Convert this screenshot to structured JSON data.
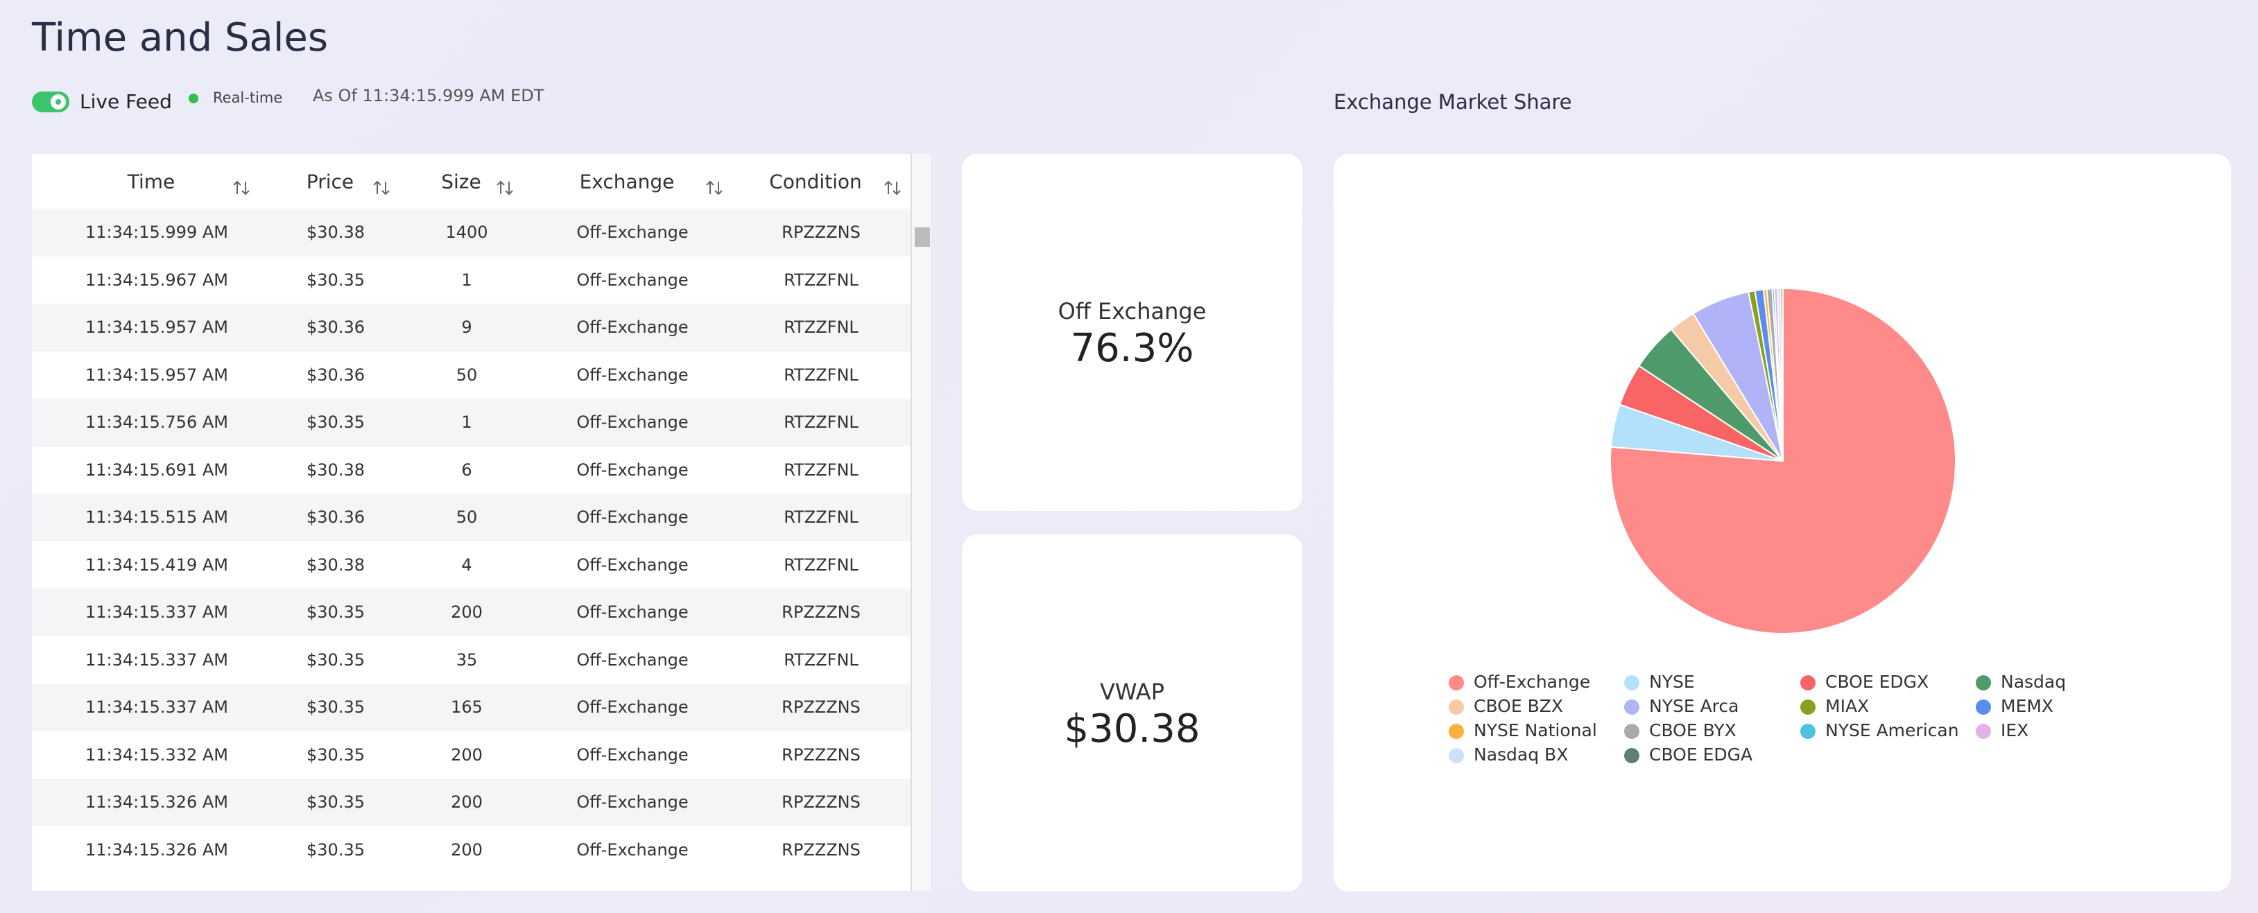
{
  "header": {
    "title": "Time and Sales",
    "live_feed": "Live Feed",
    "status": "Real-time",
    "as_of": "As Of 11:34:15.999 AM EDT"
  },
  "table": {
    "columns": [
      "Time",
      "Price",
      "Size",
      "Exchange",
      "Condition"
    ],
    "rows": [
      [
        "11:34:15.999 AM",
        "$30.38",
        "1400",
        "Off-Exchange",
        "RPZZZNS"
      ],
      [
        "11:34:15.967 AM",
        "$30.35",
        "1",
        "Off-Exchange",
        "RTZZFNL"
      ],
      [
        "11:34:15.957 AM",
        "$30.36",
        "9",
        "Off-Exchange",
        "RTZZFNL"
      ],
      [
        "11:34:15.957 AM",
        "$30.36",
        "50",
        "Off-Exchange",
        "RTZZFNL"
      ],
      [
        "11:34:15.756 AM",
        "$30.35",
        "1",
        "Off-Exchange",
        "RTZZFNL"
      ],
      [
        "11:34:15.691 AM",
        "$30.38",
        "6",
        "Off-Exchange",
        "RTZZFNL"
      ],
      [
        "11:34:15.515 AM",
        "$30.36",
        "50",
        "Off-Exchange",
        "RTZZFNL"
      ],
      [
        "11:34:15.419 AM",
        "$30.38",
        "4",
        "Off-Exchange",
        "RTZZFNL"
      ],
      [
        "11:34:15.337 AM",
        "$30.35",
        "200",
        "Off-Exchange",
        "RPZZZNS"
      ],
      [
        "11:34:15.337 AM",
        "$30.35",
        "35",
        "Off-Exchange",
        "RTZZFNL"
      ],
      [
        "11:34:15.337 AM",
        "$30.35",
        "165",
        "Off-Exchange",
        "RPZZZNS"
      ],
      [
        "11:34:15.332 AM",
        "$30.35",
        "200",
        "Off-Exchange",
        "RPZZZNS"
      ],
      [
        "11:34:15.326 AM",
        "$30.35",
        "200",
        "Off-Exchange",
        "RPZZZNS"
      ],
      [
        "11:34:15.326 AM",
        "$30.35",
        "200",
        "Off-Exchange",
        "RPZZZNS"
      ]
    ]
  },
  "cards": [
    {
      "label": "Off Exchange",
      "value": "76.3%"
    },
    {
      "label": "VWAP",
      "value": "$30.38"
    }
  ],
  "chart_data": {
    "type": "pie",
    "title": "Exchange Market Share",
    "categories": [
      "Off-Exchange",
      "NYSE",
      "CBOE EDGX",
      "Nasdaq",
      "CBOE BZX",
      "NYSE Arca",
      "MIAX",
      "MEMX",
      "NYSE National",
      "CBOE BYX",
      "NYSE American",
      "IEX",
      "Nasdaq BX",
      "CBOE EDGA"
    ],
    "values": [
      76.3,
      4,
      4,
      4.5,
      2.5,
      5.5,
      0.6,
      0.8,
      0.3,
      0.5,
      0.2,
      0.3,
      0.3,
      0.2
    ],
    "colors": [
      "#ff8a8a",
      "#b3e0fb",
      "#f96565",
      "#4e9a6a",
      "#f5cba7",
      "#b0b3f7",
      "#88a01a",
      "#5b8def",
      "#fbb040",
      "#aaaaaa",
      "#4cc3dd",
      "#e2b3e8",
      "#cde0f5",
      "#5e7f78"
    ],
    "legend": "bottom"
  }
}
